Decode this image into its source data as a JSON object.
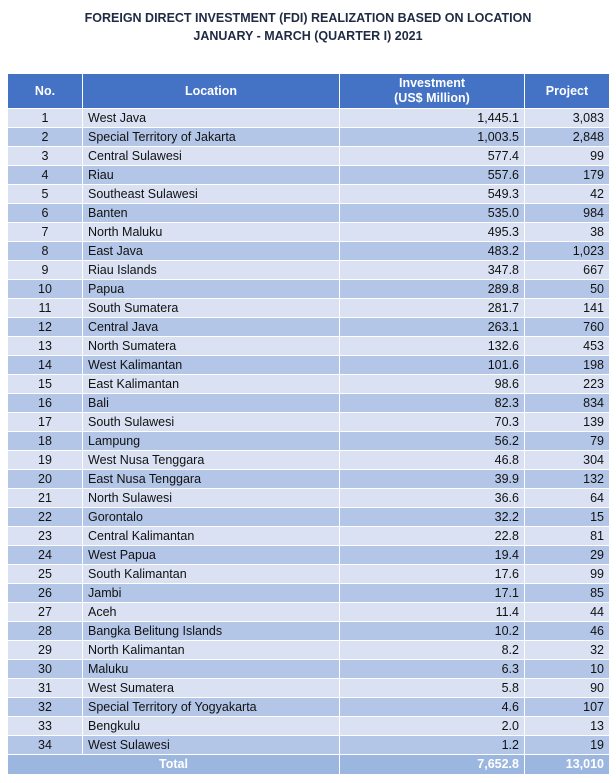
{
  "title_line1": "FOREIGN DIRECT INVESTMENT (FDI) REALIZATION BASED ON LOCATION",
  "title_line2": "JANUARY - MARCH (QUARTER I) 2021",
  "columns": {
    "no": "No.",
    "location": "Location",
    "investment_line1": "Investment",
    "investment_line2": "(US$ Million)",
    "project": "Project"
  },
  "rows": [
    {
      "no": "1",
      "location": "West Java",
      "investment": "1,445.1",
      "project": "3,083"
    },
    {
      "no": "2",
      "location": "Special Territory of Jakarta",
      "investment": "1,003.5",
      "project": "2,848"
    },
    {
      "no": "3",
      "location": "Central Sulawesi",
      "investment": "577.4",
      "project": "99"
    },
    {
      "no": "4",
      "location": "Riau",
      "investment": "557.6",
      "project": "179"
    },
    {
      "no": "5",
      "location": "Southeast Sulawesi",
      "investment": "549.3",
      "project": "42"
    },
    {
      "no": "6",
      "location": "Banten",
      "investment": "535.0",
      "project": "984"
    },
    {
      "no": "7",
      "location": "North Maluku",
      "investment": "495.3",
      "project": "38"
    },
    {
      "no": "8",
      "location": "East Java",
      "investment": "483.2",
      "project": "1,023"
    },
    {
      "no": "9",
      "location": "Riau Islands",
      "investment": "347.8",
      "project": "667"
    },
    {
      "no": "10",
      "location": "Papua",
      "investment": "289.8",
      "project": "50"
    },
    {
      "no": "11",
      "location": "South Sumatera",
      "investment": "281.7",
      "project": "141"
    },
    {
      "no": "12",
      "location": "Central Java",
      "investment": "263.1",
      "project": "760"
    },
    {
      "no": "13",
      "location": "North Sumatera",
      "investment": "132.6",
      "project": "453"
    },
    {
      "no": "14",
      "location": "West Kalimantan",
      "investment": "101.6",
      "project": "198"
    },
    {
      "no": "15",
      "location": "East Kalimantan",
      "investment": "98.6",
      "project": "223"
    },
    {
      "no": "16",
      "location": "Bali",
      "investment": "82.3",
      "project": "834"
    },
    {
      "no": "17",
      "location": "South Sulawesi",
      "investment": "70.3",
      "project": "139"
    },
    {
      "no": "18",
      "location": "Lampung",
      "investment": "56.2",
      "project": "79"
    },
    {
      "no": "19",
      "location": "West Nusa Tenggara",
      "investment": "46.8",
      "project": "304"
    },
    {
      "no": "20",
      "location": "East Nusa Tenggara",
      "investment": "39.9",
      "project": "132"
    },
    {
      "no": "21",
      "location": "North Sulawesi",
      "investment": "36.6",
      "project": "64"
    },
    {
      "no": "22",
      "location": "Gorontalo",
      "investment": "32.2",
      "project": "15"
    },
    {
      "no": "23",
      "location": "Central Kalimantan",
      "investment": "22.8",
      "project": "81"
    },
    {
      "no": "24",
      "location": "West Papua",
      "investment": "19.4",
      "project": "29"
    },
    {
      "no": "25",
      "location": "South Kalimantan",
      "investment": "17.6",
      "project": "99"
    },
    {
      "no": "26",
      "location": "Jambi",
      "investment": "17.1",
      "project": "85"
    },
    {
      "no": "27",
      "location": "Aceh",
      "investment": "11.4",
      "project": "44"
    },
    {
      "no": "28",
      "location": "Bangka Belitung Islands",
      "investment": "10.2",
      "project": "46"
    },
    {
      "no": "29",
      "location": "North Kalimantan",
      "investment": "8.2",
      "project": "32"
    },
    {
      "no": "30",
      "location": "Maluku",
      "investment": "6.3",
      "project": "10"
    },
    {
      "no": "31",
      "location": "West Sumatera",
      "investment": "5.8",
      "project": "90"
    },
    {
      "no": "32",
      "location": "Special Territory of Yogyakarta",
      "investment": "4.6",
      "project": "107"
    },
    {
      "no": "33",
      "location": "Bengkulu",
      "investment": "2.0",
      "project": "13"
    },
    {
      "no": "34",
      "location": "West Sulawesi",
      "investment": "1.2",
      "project": "19"
    }
  ],
  "total": {
    "label": "Total",
    "investment": "7,652.8",
    "project": "13,010"
  }
}
